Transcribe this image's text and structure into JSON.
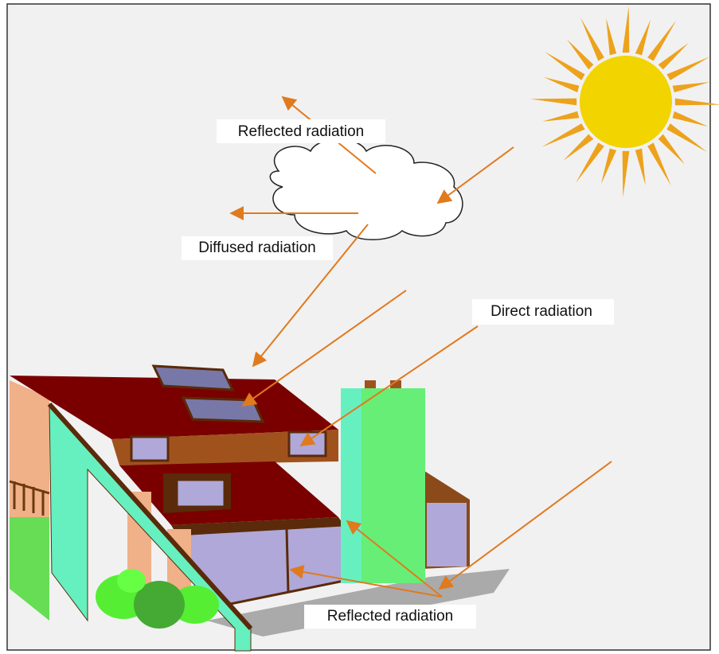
{
  "labels": {
    "cloud_reflected": "Reflected radiation",
    "diffused": "Diffused radiation",
    "direct": "Direct radiation",
    "ground_reflected": "Reflected radiation"
  }
}
